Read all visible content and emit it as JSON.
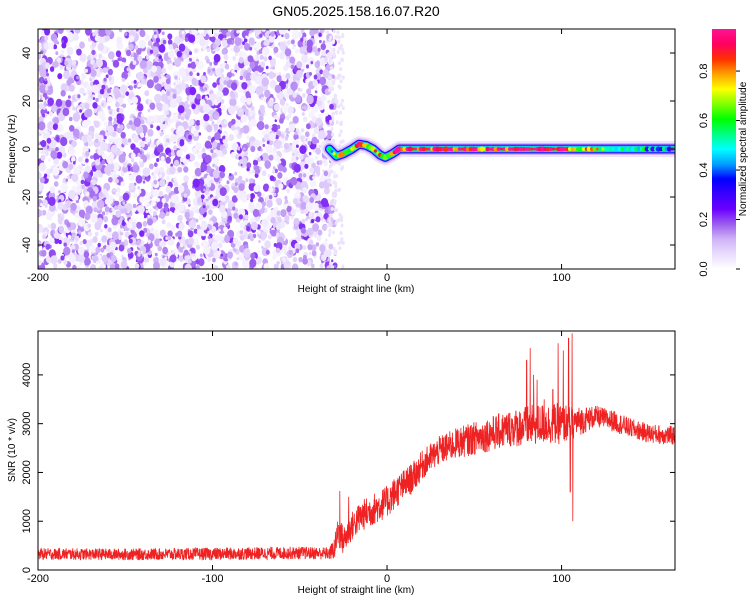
{
  "figure": {
    "title": "GN05.2025.158.16.07.R20"
  },
  "chart_data": [
    {
      "type": "heatmap",
      "name": "spectrogram",
      "xlabel": "Height of straight line (km)",
      "ylabel": "Frequency (Hz)",
      "xlim": [
        -200,
        165
      ],
      "ylim": [
        -50,
        50
      ],
      "xticks": [
        -200,
        -100,
        0,
        100
      ],
      "xtick_labels": [
        "-200",
        "-100",
        "0",
        "100"
      ],
      "yticks": [
        -40,
        -20,
        0,
        20,
        40
      ],
      "ytick_labels": [
        "-40",
        "-20",
        "0",
        "20",
        "40"
      ],
      "colorbar": {
        "label": "Normalized spectral amplitude",
        "range": [
          0,
          0.97
        ],
        "ticks": [
          0,
          0.2,
          0.4,
          0.6,
          0.8
        ],
        "tick_labels": [
          "0.0",
          "0.2",
          "0.4",
          "0.6",
          "0.8"
        ],
        "colors": [
          "#ffffff",
          "#e9ddfd",
          "#cfb3f7",
          "#9b5cee",
          "#6a00ff",
          "#3a00ff",
          "#0000ff",
          "#00a0ff",
          "#00ffff",
          "#00ff80",
          "#00ff00",
          "#80ff00",
          "#ffff00",
          "#ffa000",
          "#ff3000",
          "#ff0060",
          "#ff1493"
        ]
      },
      "noise_region": {
        "x_range": [
          -200,
          -33
        ],
        "freq_range": [
          -50,
          50
        ],
        "amplitude_range": [
          0.02,
          0.22
        ]
      },
      "signal_track": [
        {
          "x": -33,
          "freq": 0,
          "amplitude": 0.55
        },
        {
          "x": -29,
          "freq": -3,
          "amplitude": 0.6
        },
        {
          "x": -25,
          "freq": -2,
          "amplitude": 0.7
        },
        {
          "x": -20,
          "freq": 0,
          "amplitude": 0.75
        },
        {
          "x": -16,
          "freq": 2,
          "amplitude": 0.85
        },
        {
          "x": -12,
          "freq": 1.5,
          "amplitude": 0.7
        },
        {
          "x": -8,
          "freq": 0,
          "amplitude": 0.8
        },
        {
          "x": -4,
          "freq": -2.5,
          "amplitude": 0.7
        },
        {
          "x": -1,
          "freq": -3.5,
          "amplitude": 0.8
        },
        {
          "x": 3,
          "freq": -2,
          "amplitude": 0.75
        },
        {
          "x": 7,
          "freq": 0,
          "amplitude": 0.9
        },
        {
          "x": 40,
          "freq": 0,
          "amplitude": 0.9
        },
        {
          "x": 80,
          "freq": 0,
          "amplitude": 0.9
        },
        {
          "x": 100,
          "freq": 0,
          "amplitude": 0.85
        },
        {
          "x": 130,
          "freq": 0,
          "amplitude": 0.6
        },
        {
          "x": 165,
          "freq": 0,
          "amplitude": 0.35
        }
      ]
    },
    {
      "type": "line",
      "name": "snr",
      "xlabel": "Height of straight line (km)",
      "ylabel": "SNR (10 * v/v)",
      "xlim": [
        -200,
        165
      ],
      "ylim": [
        0,
        4900
      ],
      "xticks": [
        -200,
        -100,
        0,
        100
      ],
      "xtick_labels": [
        "-200",
        "-100",
        "0",
        "100"
      ],
      "yticks": [
        0,
        1000,
        2000,
        3000,
        4000
      ],
      "ytick_labels": [
        "0",
        "1000",
        "2000",
        "3000",
        "4000"
      ],
      "series": [
        {
          "color": "#ee2222",
          "envelope": {
            "x": [
              -200,
              -150,
              -100,
              -50,
              -33,
              -30,
              -28,
              -25,
              -20,
              -15,
              -10,
              -5,
              0,
              5,
              10,
              15,
              20,
              25,
              30,
              40,
              50,
              60,
              70,
              80,
              90,
              100,
              110,
              120,
              130,
              140,
              150,
              165
            ],
            "mean": [
              330,
              320,
              330,
              350,
              340,
              450,
              800,
              600,
              900,
              1100,
              1200,
              1300,
              1400,
              1600,
              1750,
              1900,
              2150,
              2300,
              2450,
              2600,
              2700,
              2800,
              2900,
              2950,
              3000,
              3000,
              3050,
              3150,
              3050,
              2900,
              2800,
              2750
            ],
            "spread": [
              120,
              120,
              130,
              130,
              130,
              250,
              350,
              300,
              300,
              320,
              330,
              330,
              330,
              340,
              320,
              320,
              300,
              300,
              300,
              320,
              340,
              360,
              380,
              420,
              420,
              430,
              300,
              220,
              220,
              200,
              200,
              200
            ]
          },
          "spikes": [
            {
              "x": 80,
              "y": 4300
            },
            {
              "x": 82,
              "y": 4550
            },
            {
              "x": 84,
              "y": 4000
            },
            {
              "x": 86,
              "y": 3900
            },
            {
              "x": 90,
              "y": 3500
            },
            {
              "x": 95,
              "y": 3700
            },
            {
              "x": 98,
              "y": 4650
            },
            {
              "x": 101,
              "y": 4500
            },
            {
              "x": 104,
              "y": 4750
            },
            {
              "x": 106,
              "y": 4850
            },
            {
              "x": 106.5,
              "y": 1000
            },
            {
              "x": 105,
              "y": 1600
            },
            {
              "x": -27,
              "y": 1620
            },
            {
              "x": -22,
              "y": 1500
            }
          ]
        }
      ]
    }
  ]
}
